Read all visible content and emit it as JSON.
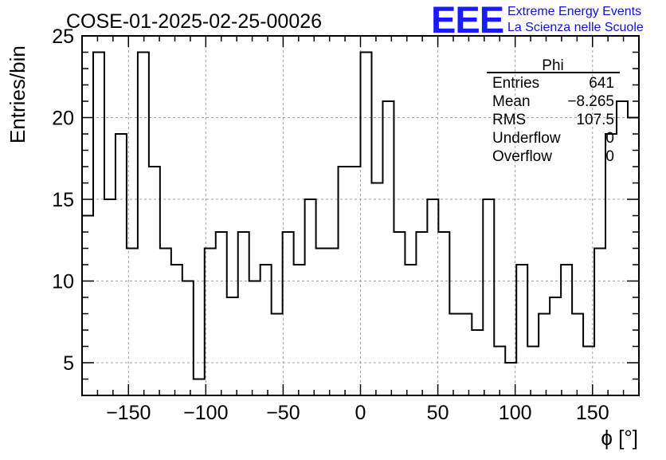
{
  "header": {
    "run_title": "COSE-01-2025-02-25-00026",
    "logo_text": "EEE",
    "org_line1": "Extreme Energy Events",
    "org_line2": "La Scienza nelle Scuole"
  },
  "stats_box": {
    "name": "Phi",
    "rows": [
      {
        "label": "Entries",
        "value": "641"
      },
      {
        "label": "Mean",
        "value": "−8.265"
      },
      {
        "label": "RMS",
        "value": "107.5"
      },
      {
        "label": "Underflow",
        "value": "0"
      },
      {
        "label": "Overflow",
        "value": "0"
      }
    ]
  },
  "chart_data": {
    "type": "histogram",
    "title": "COSE-01-2025-02-25-00026",
    "xlabel": "ϕ [°]",
    "ylabel": "Entries/bin",
    "xlim": [
      -180,
      180
    ],
    "ylim": [
      3,
      25
    ],
    "bin_width": 7.2,
    "x_ticks": [
      -150,
      -100,
      -50,
      0,
      50,
      100,
      150
    ],
    "x_tick_labels": [
      "−150",
      "−100",
      "−50",
      "0",
      "50",
      "100",
      "150"
    ],
    "y_ticks": [
      5,
      10,
      15,
      20,
      25
    ],
    "y_tick_labels": [
      "5",
      "10",
      "15",
      "20",
      "25"
    ],
    "grid": true,
    "values": [
      14,
      24,
      15,
      19,
      12,
      24,
      17,
      12,
      11,
      10,
      4,
      12,
      13,
      9,
      13,
      10,
      11,
      8,
      13,
      11,
      15,
      12,
      12,
      17,
      17,
      24,
      16,
      21,
      13,
      11,
      13,
      15,
      13,
      8,
      8,
      7,
      15,
      6,
      5,
      11,
      6,
      8,
      9,
      11,
      8,
      6,
      12,
      19,
      21,
      20
    ]
  }
}
